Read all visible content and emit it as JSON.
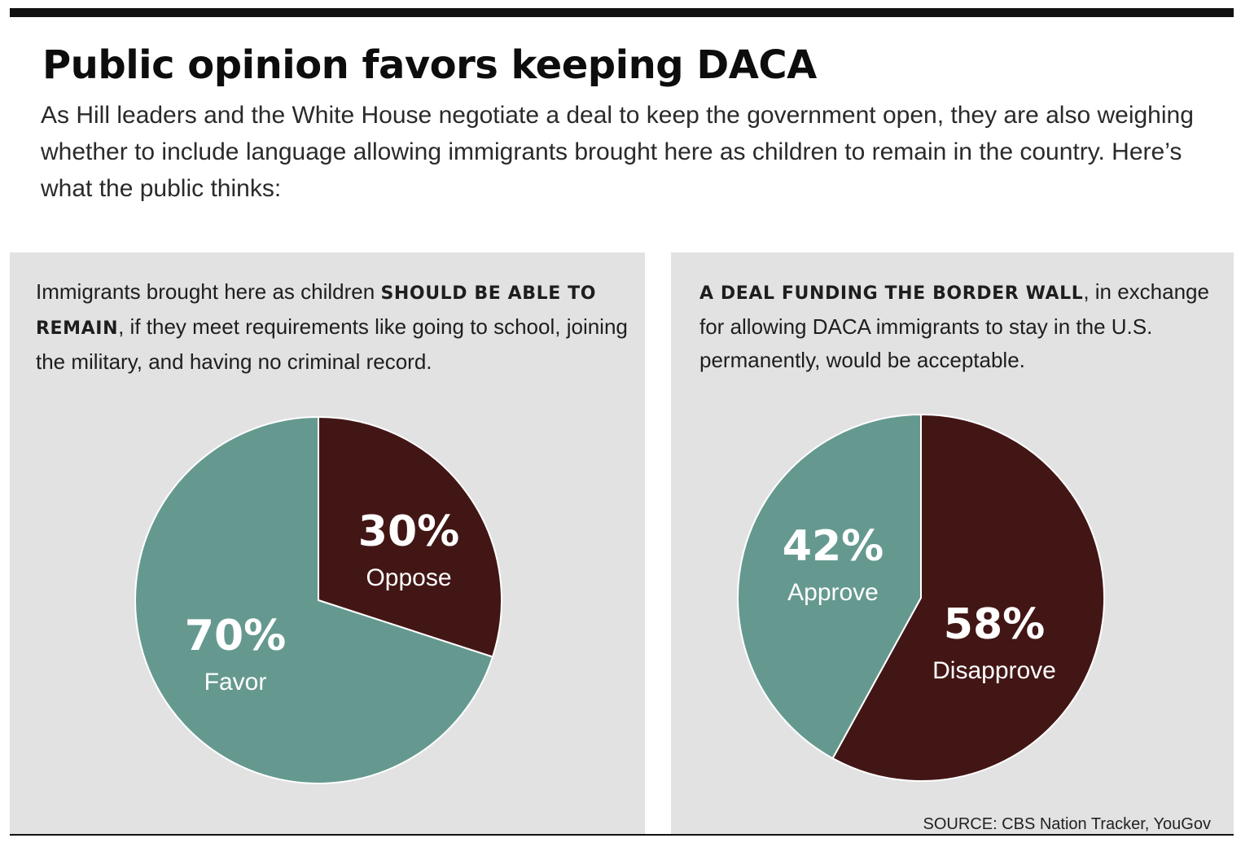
{
  "title": "Public opinion favors keeping DACA",
  "subtitle": "As Hill leaders and the White House negotiate a deal to keep the government open, they are also weighing whether to include language allowing immigrants brought here as children to remain in the country. Here’s what the public thinks:",
  "colors": {
    "teal": "#659990",
    "maroon": "#431616",
    "panel_bg": "#e2e2e2"
  },
  "panels": [
    {
      "caption_before": "Immigrants brought here as children ",
      "caption_bold": "should be able to remain",
      "caption_after": ", if they meet requirements like going to school, joining the military, and having no criminal record."
    },
    {
      "caption_before": "",
      "caption_bold": "A deal funding the border wall",
      "caption_after": ", in exchange for allowing DACA immigrants to stay in the U.S. permanently, would be acceptable."
    }
  ],
  "chart_data": [
    {
      "type": "pie",
      "slices": [
        {
          "label": "Oppose",
          "value": 30,
          "value_label": "30%",
          "color": "#431616"
        },
        {
          "label": "Favor",
          "value": 70,
          "value_label": "70%",
          "color": "#659990"
        }
      ]
    },
    {
      "type": "pie",
      "slices": [
        {
          "label": "Disapprove",
          "value": 58,
          "value_label": "58%",
          "color": "#431616"
        },
        {
          "label": "Approve",
          "value": 42,
          "value_label": "42%",
          "color": "#659990"
        }
      ]
    }
  ],
  "source": "SOURCE: CBS Nation Tracker, YouGov"
}
